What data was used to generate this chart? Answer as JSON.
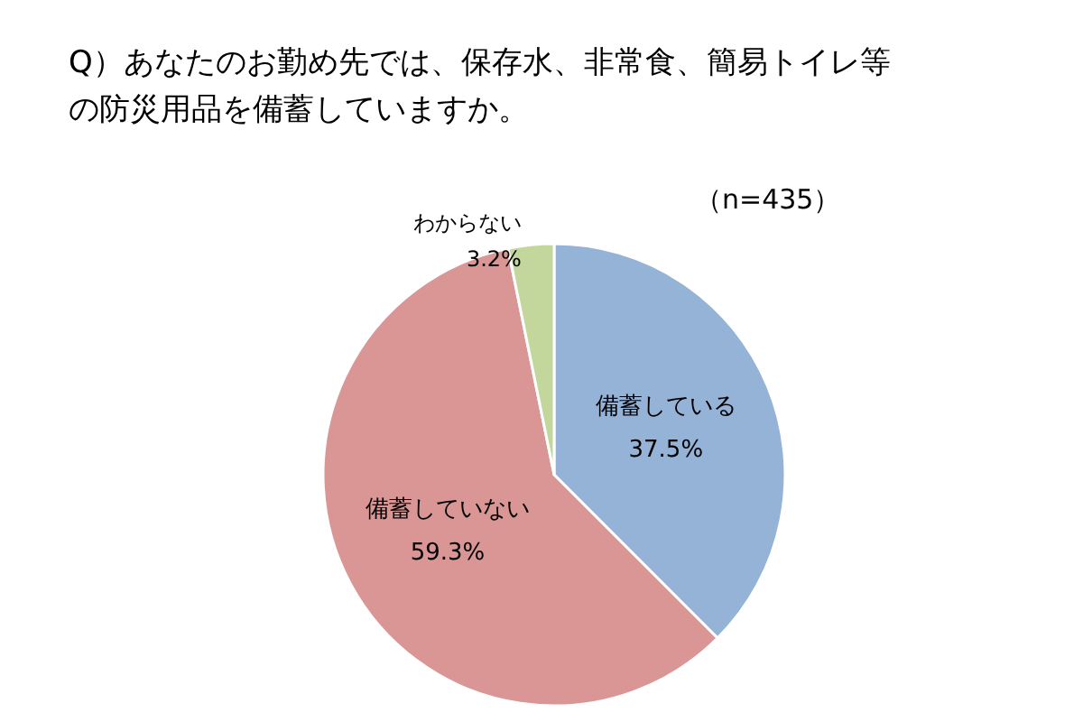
{
  "chart_data": {
    "type": "pie",
    "title": "Q）あなたのお勤め先では、保存水、非常食、簡易トイレ等の防災用品を備蓄していますか。",
    "annotations": [
      "（n=435）"
    ],
    "categories": [
      "備蓄している",
      "備蓄していない",
      "わからない"
    ],
    "values": [
      37.5,
      59.3,
      3.2
    ],
    "value_labels": [
      "37.5%",
      "59.3%",
      "3.2%"
    ],
    "colors": [
      "#95b3d7",
      "#d99694",
      "#c3d69b"
    ],
    "legend": false
  }
}
